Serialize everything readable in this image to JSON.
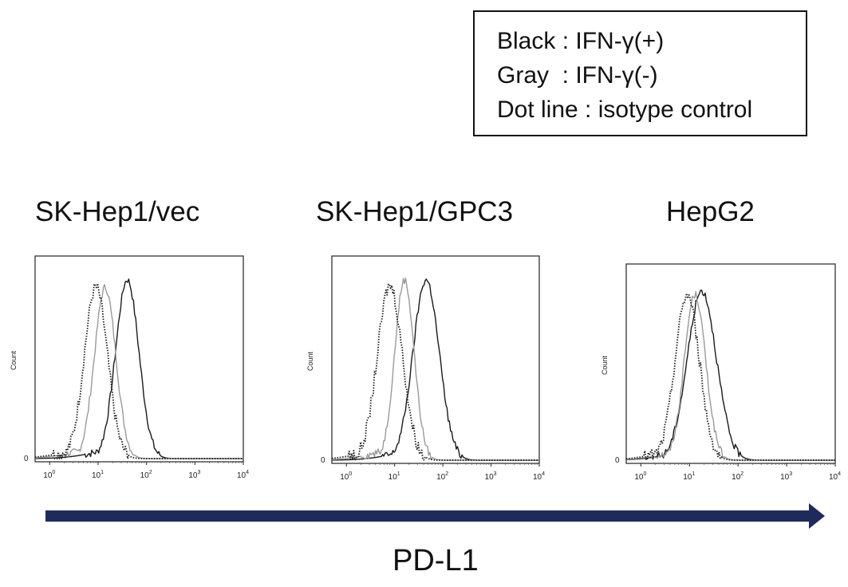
{
  "legend": {
    "lines": [
      "Black : IFN-γ(+)",
      "Gray  : IFN-γ(-)",
      "Dot line : isotype control"
    ]
  },
  "xaxis_title": "PD-L1",
  "colors": {
    "black": "#1a1a1a",
    "gray": "#9a9a9a",
    "dot": "#1a1a1a",
    "arrow": "#1f2a5a"
  },
  "chart_data": [
    {
      "type": "line",
      "title": "SK-Hep1/vec",
      "ylabel": "Count",
      "xscale": "log",
      "xlim": [
        0.5,
        10000
      ],
      "xticks": [
        1,
        10,
        100,
        1000,
        10000
      ],
      "ytick_labels": [
        "0"
      ],
      "ylim": [
        0,
        100
      ],
      "series": [
        {
          "name": "Black : IFN-γ(+)",
          "style": "solid-black",
          "peak_x": 40,
          "peak_y": 92,
          "width": 0.24
        },
        {
          "name": "Gray  : IFN-γ(-)",
          "style": "solid-gray",
          "peak_x": 14,
          "peak_y": 88,
          "width": 0.22
        },
        {
          "name": "Dot line : isotype control",
          "style": "dotted",
          "peak_x": 9,
          "peak_y": 88,
          "width": 0.24
        }
      ]
    },
    {
      "type": "line",
      "title": "SK-Hep1/GPC3",
      "ylabel": "Count",
      "xscale": "log",
      "xlim": [
        0.5,
        10000
      ],
      "xticks": [
        1,
        10,
        100,
        1000,
        10000
      ],
      "ytick_labels": [
        "0"
      ],
      "ylim": [
        0,
        100
      ],
      "series": [
        {
          "name": "Black : IFN-γ(+)",
          "style": "solid-black",
          "peak_x": 45,
          "peak_y": 92,
          "width": 0.27
        },
        {
          "name": "Gray  : IFN-γ(-)",
          "style": "solid-gray",
          "peak_x": 16,
          "peak_y": 92,
          "width": 0.2
        },
        {
          "name": "Dot line : isotype control",
          "style": "dotted",
          "peak_x": 8,
          "peak_y": 89,
          "width": 0.26
        }
      ]
    },
    {
      "type": "line",
      "title": "HepG2",
      "ylabel": "Count",
      "xscale": "log",
      "xlim": [
        0.5,
        10000
      ],
      "xticks": [
        1,
        10,
        100,
        1000,
        10000
      ],
      "ytick_labels": [
        "0"
      ],
      "ylim": [
        0,
        100
      ],
      "series": [
        {
          "name": "Black : IFN-γ(+)",
          "style": "solid-black",
          "peak_x": 18,
          "peak_y": 90,
          "width": 0.3
        },
        {
          "name": "Gray  : IFN-γ(-)",
          "style": "solid-gray",
          "peak_x": 13,
          "peak_y": 88,
          "width": 0.22
        },
        {
          "name": "Dot line : isotype control",
          "style": "dotted",
          "peak_x": 9,
          "peak_y": 88,
          "width": 0.25
        }
      ]
    }
  ]
}
